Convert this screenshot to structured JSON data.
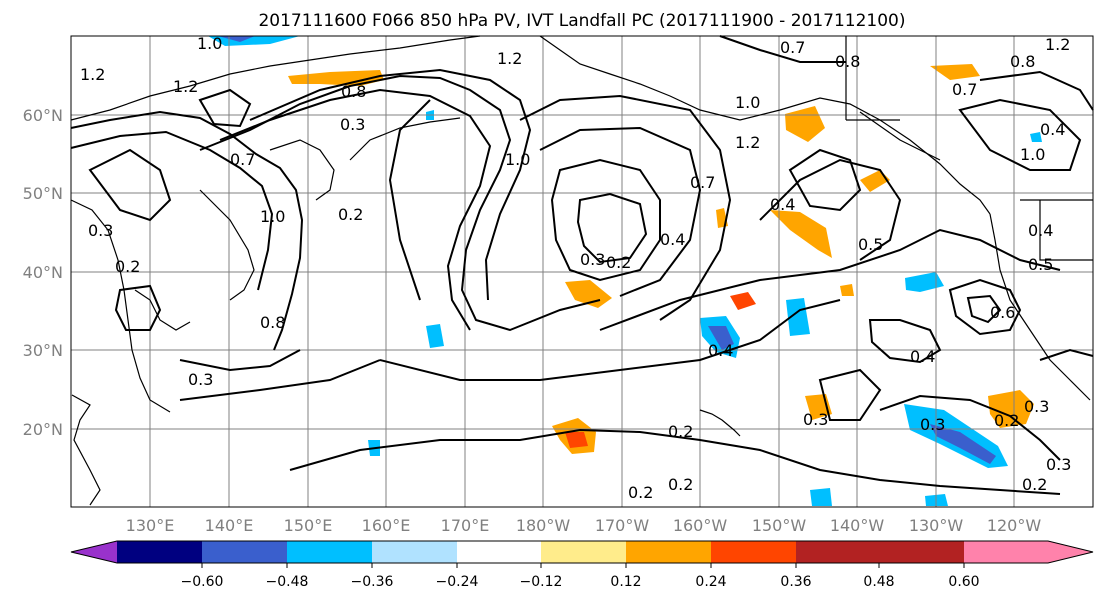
{
  "title": "2017111600 F066 850 hPa PV, IVT Landfall PC (2017111900 - 2017112100)",
  "map": {
    "lon_labels": [
      "130°E",
      "140°E",
      "150°E",
      "160°E",
      "170°E",
      "180°W",
      "170°W",
      "160°W",
      "150°W",
      "140°W",
      "130°W",
      "120°W"
    ],
    "lat_labels": [
      "60°N",
      "50°N",
      "40°N",
      "30°N",
      "20°N"
    ],
    "contour_labels": [
      "1.0",
      "1.2",
      "0.8",
      "0.3",
      "1.2",
      "0.7",
      "0.8",
      "0.8",
      "0.7",
      "1.2",
      "1.2",
      "1.0",
      "0.4",
      "1.2",
      "1.0",
      "0.2",
      "1.0",
      "0.7",
      "0.7",
      "0.4",
      "0.3",
      "0.2",
      "0.4",
      "0.5",
      "0.5",
      "0.4",
      "0.6",
      "1.0",
      "0.8",
      "0.3",
      "0.2",
      "0.4",
      "0.4",
      "0.3",
      "0.2",
      "0.3",
      "0.3",
      "0.2",
      "0.2",
      "0.2",
      "0.3",
      "0.2",
      "0.3"
    ],
    "colors": {
      "purple": "#9932cc",
      "navy": "#000080",
      "blue": "#3a5fcd",
      "deepskyblue": "#00bfff",
      "lightblue": "#b0e2ff",
      "white": "#ffffff",
      "yellow": "#ffec8b",
      "orange": "#ffa500",
      "orangered": "#ff4500",
      "firebrick": "#b22222",
      "pink": "#ff82ab"
    }
  },
  "colorbar": {
    "tick_labels": [
      "−0.60",
      "−0.48",
      "−0.36",
      "−0.24",
      "−0.12",
      "0.12",
      "0.24",
      "0.36",
      "0.48",
      "0.60"
    ],
    "bins": [
      "#9932cc",
      "#000080",
      "#3a5fcd",
      "#00bfff",
      "#b0e2ff",
      "#ffffff",
      "#ffec8b",
      "#ffa500",
      "#ff4500",
      "#b22222",
      "#ff82ab"
    ]
  }
}
